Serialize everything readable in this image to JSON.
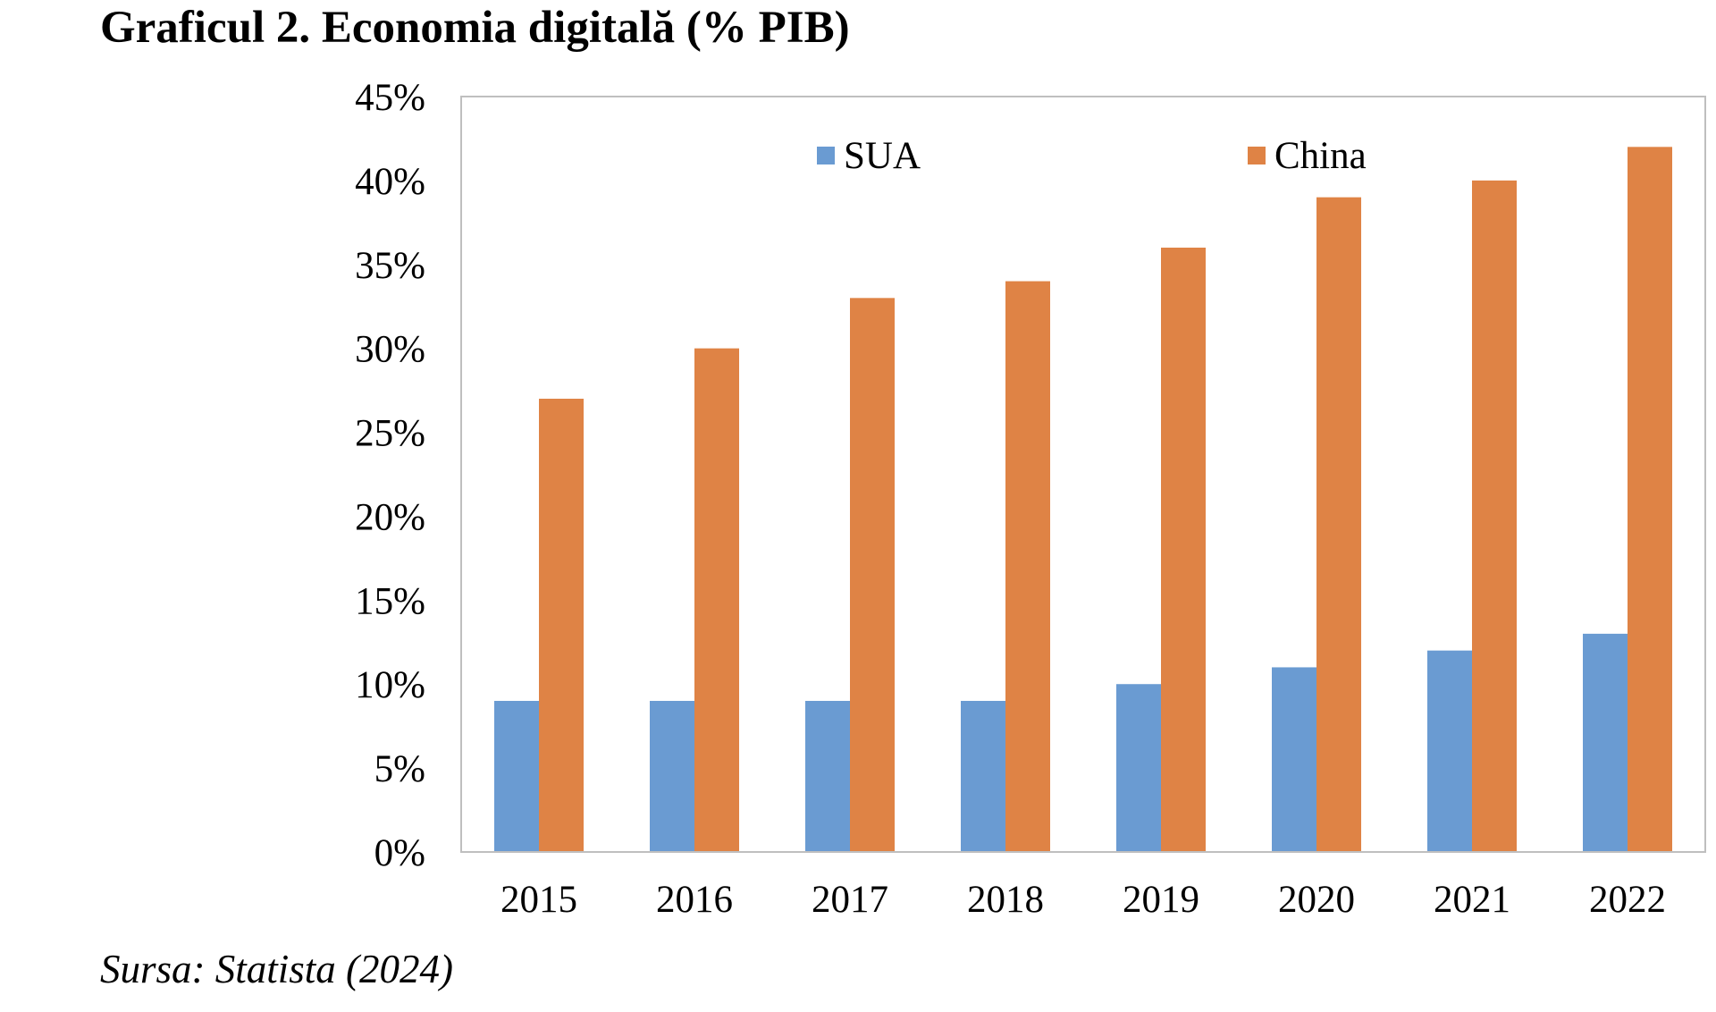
{
  "title": "Graficul 2. Economia digitală (% PIB)",
  "source": "Sursa: Statista (2024)",
  "colors": {
    "SUA": "#6a9bd2",
    "China": "#df8345",
    "axis": "#bfbfbf",
    "frame": "#bfbfbf"
  },
  "chart_data": {
    "type": "bar",
    "title": "Graficul 2. Economia digitală (% PIB)",
    "categories": [
      "2015",
      "2016",
      "2017",
      "2018",
      "2019",
      "2020",
      "2021",
      "2022"
    ],
    "series": [
      {
        "name": "SUA",
        "values": [
          9,
          9,
          9,
          9,
          10,
          11,
          12,
          13
        ]
      },
      {
        "name": "China",
        "values": [
          27,
          30,
          33,
          34,
          36,
          39,
          40,
          42
        ]
      }
    ],
    "ylim": [
      0,
      45
    ],
    "yticks": [
      0,
      5,
      10,
      15,
      20,
      25,
      30,
      35,
      40,
      45
    ],
    "ytick_labels": [
      "0%",
      "5%",
      "10%",
      "15%",
      "20%",
      "25%",
      "30%",
      "35%",
      "40%",
      "45%"
    ],
    "xlabel": "",
    "ylabel": "",
    "grid": false,
    "legend_position": "top-inside"
  }
}
